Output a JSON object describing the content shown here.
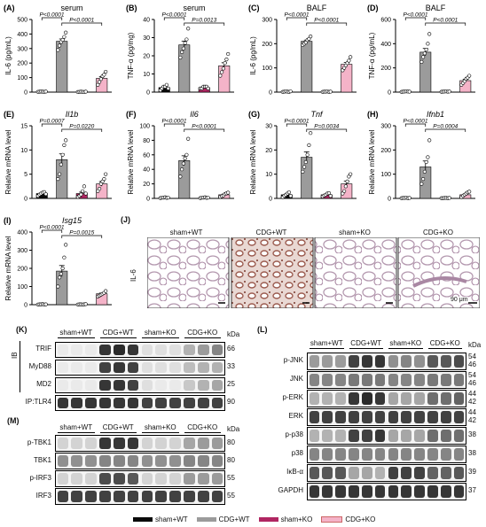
{
  "colors": {
    "sham_WT": "#0a0a0a",
    "CDG_WT": "#9b9b9b",
    "sham_KO": "#b02662",
    "CDG_KO": "#f4b3c8"
  },
  "legend": [
    "sham+WT",
    "CDG+WT",
    "sham+KO",
    "CDG+KO"
  ],
  "chart_data": [
    {
      "type": "bar",
      "panel": "(A)",
      "title": "serum",
      "ylabel": "IL-6 (pg/mL)",
      "ylim": [
        0,
        500
      ],
      "yticks": [
        "0",
        "100",
        "200",
        "300",
        "400",
        "500"
      ],
      "categories": [
        "sham+WT",
        "CDG+WT",
        "sham+KO",
        "CDG+KO"
      ],
      "values": [
        3,
        350,
        2,
        95
      ],
      "points": [
        [
          2,
          3,
          4,
          3,
          2,
          4
        ],
        [
          290,
          320,
          345,
          360,
          380,
          410
        ],
        [
          1,
          2,
          3,
          2,
          1,
          3
        ],
        [
          50,
          70,
          90,
          110,
          120,
          140
        ]
      ],
      "comparisons": [
        {
          "label": "P<0.0001",
          "from": 0,
          "to": 1
        },
        {
          "label": "P<0.0001",
          "from": 1,
          "to": 3
        }
      ]
    },
    {
      "type": "bar",
      "panel": "(B)",
      "title": "serum",
      "ylabel": "TNF-α (pg/mg)",
      "ylim": [
        0,
        40
      ],
      "yticks": [
        "0",
        "10",
        "20",
        "30",
        "40"
      ],
      "categories": [
        "sham+WT",
        "CDG+WT",
        "sham+KO",
        "CDG+KO"
      ],
      "values": [
        2.5,
        26,
        2.5,
        14.5
      ],
      "points": [
        [
          1,
          2,
          3,
          3,
          4,
          2
        ],
        [
          19,
          22,
          24,
          27,
          29,
          35
        ],
        [
          2,
          2,
          3,
          3,
          3,
          2
        ],
        [
          9,
          11,
          13,
          16,
          18,
          21
        ]
      ],
      "comparisons": [
        {
          "label": "P<0.0001",
          "from": 0,
          "to": 1
        },
        {
          "label": "P=0.0013",
          "from": 1,
          "to": 3
        }
      ]
    },
    {
      "type": "bar",
      "panel": "(C)",
      "title": "BALF",
      "ylabel": "IL-6 (pg/mL)",
      "ylim": [
        0,
        300
      ],
      "yticks": [
        "0",
        "100",
        "200",
        "300"
      ],
      "categories": [
        "sham+WT",
        "CDG+WT",
        "sham+KO",
        "CDG+KO"
      ],
      "values": [
        2,
        210,
        2,
        115
      ],
      "points": [
        [
          1,
          2,
          3,
          2,
          1,
          3
        ],
        [
          195,
          200,
          205,
          215,
          220,
          230
        ],
        [
          1,
          2,
          2,
          3,
          1,
          2
        ],
        [
          90,
          100,
          110,
          120,
          130,
          145
        ]
      ],
      "comparisons": [
        {
          "label": "P<0.0001",
          "from": 0,
          "to": 1
        },
        {
          "label": "P<0.0001",
          "from": 1,
          "to": 3
        }
      ]
    },
    {
      "type": "bar",
      "panel": "(D)",
      "title": "BALF",
      "ylabel": "TNF-α (pg/mL)",
      "ylim": [
        0,
        600
      ],
      "yticks": [
        "0",
        "200",
        "400",
        "600"
      ],
      "categories": [
        "sham+WT",
        "CDG+WT",
        "sham+KO",
        "CDG+KO"
      ],
      "values": [
        5,
        330,
        5,
        95
      ],
      "points": [
        [
          2,
          4,
          5,
          6,
          5,
          4
        ],
        [
          250,
          290,
          320,
          350,
          400,
          480
        ],
        [
          3,
          4,
          5,
          6,
          4,
          5
        ],
        [
          60,
          75,
          90,
          110,
          120,
          135
        ]
      ],
      "comparisons": [
        {
          "label": "P<0.0001",
          "from": 0,
          "to": 1
        },
        {
          "label": "P<0.0001",
          "from": 1,
          "to": 3
        }
      ]
    },
    {
      "type": "bar",
      "panel": "(E)",
      "title": "Il1b",
      "ylabel": "Relative mRNA level",
      "ylim": [
        0,
        15
      ],
      "yticks": [
        "0",
        "5",
        "10",
        "15"
      ],
      "categories": [
        "sham+WT",
        "CDG+WT",
        "sham+KO",
        "CDG+KO"
      ],
      "values": [
        1,
        8,
        1,
        3
      ],
      "points": [
        [
          0.5,
          0.8,
          1.0,
          1.2,
          1.3,
          0.9
        ],
        [
          4,
          5,
          7,
          9,
          11,
          12
        ],
        [
          0.3,
          0.5,
          0.8,
          1.5,
          2.5,
          1.0
        ],
        [
          1.5,
          2,
          3,
          3.5,
          4,
          5
        ]
      ],
      "comparisons": [
        {
          "label": "P=0.0007",
          "from": 0,
          "to": 1
        },
        {
          "label": "P=0.0220",
          "from": 1,
          "to": 3
        }
      ]
    },
    {
      "type": "bar",
      "panel": "(F)",
      "title": "Il6",
      "ylabel": "Relative mRNA level",
      "ylim": [
        0,
        100
      ],
      "yticks": [
        "0",
        "20",
        "40",
        "60",
        "80",
        "100"
      ],
      "categories": [
        "sham+WT",
        "CDG+WT",
        "sham+KO",
        "CDG+KO"
      ],
      "values": [
        1,
        52,
        1,
        5
      ],
      "points": [
        [
          0.5,
          1,
          1,
          1.5,
          0.8,
          1
        ],
        [
          30,
          40,
          48,
          55,
          60,
          82
        ],
        [
          0.5,
          1,
          1,
          1.5,
          0.8,
          1
        ],
        [
          2,
          3,
          4,
          6,
          7,
          8
        ]
      ],
      "comparisons": [
        {
          "label": "P<0.0001",
          "from": 0,
          "to": 1
        },
        {
          "label": "P<0.0001",
          "from": 1,
          "to": 3
        }
      ]
    },
    {
      "type": "bar",
      "panel": "(G)",
      "title": "Tnf",
      "ylabel": "Relative mRNA level",
      "ylim": [
        0,
        30
      ],
      "yticks": [
        "0",
        "10",
        "20",
        "30"
      ],
      "categories": [
        "sham+WT",
        "CDG+WT",
        "sham+KO",
        "CDG+KO"
      ],
      "values": [
        1.5,
        17,
        1.5,
        6
      ],
      "points": [
        [
          0.5,
          1,
          1.5,
          2,
          2.5,
          1
        ],
        [
          11,
          13,
          15,
          18,
          22,
          27
        ],
        [
          0.8,
          1.2,
          1.5,
          2,
          2.2,
          1
        ],
        [
          2,
          3,
          5,
          7,
          9,
          10
        ]
      ],
      "comparisons": [
        {
          "label": "P<0.0001",
          "from": 0,
          "to": 1
        },
        {
          "label": "P=0.0034",
          "from": 1,
          "to": 3
        }
      ]
    },
    {
      "type": "bar",
      "panel": "(H)",
      "title": "Ifnb1",
      "ylabel": "Relative mRNA level",
      "ylim": [
        0,
        300
      ],
      "yticks": [
        "0",
        "100",
        "200",
        "300"
      ],
      "categories": [
        "sham+WT",
        "CDG+WT",
        "sham+KO",
        "CDG+KO"
      ],
      "values": [
        2,
        130,
        2,
        15
      ],
      "points": [
        [
          1,
          2,
          2,
          3,
          1,
          2
        ],
        [
          60,
          80,
          110,
          150,
          170,
          240
        ],
        [
          1,
          1,
          2,
          2,
          1,
          2
        ],
        [
          5,
          10,
          15,
          20,
          25,
          28
        ]
      ],
      "comparisons": [
        {
          "label": "P<0.0001",
          "from": 0,
          "to": 1
        },
        {
          "label": "P=0.0004",
          "from": 1,
          "to": 3
        }
      ]
    },
    {
      "type": "bar",
      "panel": "(I)",
      "title": "Isg15",
      "ylabel": "Relative mRNA level",
      "ylim": [
        0,
        400
      ],
      "yticks": [
        "0",
        "100",
        "200",
        "300",
        "400"
      ],
      "categories": [
        "sham+WT",
        "CDG+WT",
        "sham+KO",
        "CDG+KO"
      ],
      "values": [
        2,
        185,
        2,
        60
      ],
      "points": [
        [
          1,
          2,
          2,
          3,
          1,
          2
        ],
        [
          100,
          150,
          170,
          200,
          260,
          330
        ],
        [
          1,
          2,
          2,
          1,
          2,
          3
        ],
        [
          45,
          50,
          55,
          60,
          65,
          75
        ]
      ],
      "comparisons": [
        {
          "label": "P<0.0001",
          "from": 0,
          "to": 1
        },
        {
          "label": "P=0.0015",
          "from": 1,
          "to": 3
        }
      ]
    }
  ],
  "panel_j": {
    "label": "(J)",
    "row_label": "IL-6",
    "groups": [
      "sham+WT",
      "CDG+WT",
      "sham+KO",
      "CDG+KO"
    ],
    "scale_bar": "90 μm"
  },
  "panel_k": {
    "label": "(K)",
    "groups": [
      "sham+WT",
      "CDG+WT",
      "sham+KO",
      "CDG+KO"
    ],
    "kda_label": "kDa",
    "ib_label": "IB",
    "rows": [
      {
        "name": "TRIF",
        "kda": "66",
        "intensity": [
          0.05,
          0.05,
          0.05,
          0.85,
          0.9,
          0.85,
          0.1,
          0.1,
          0.1,
          0.3,
          0.4,
          0.5
        ]
      },
      {
        "name": "MyD88",
        "kda": "33",
        "intensity": [
          0.05,
          0.05,
          0.05,
          0.8,
          0.85,
          0.8,
          0.1,
          0.1,
          0.1,
          0.25,
          0.3,
          0.3
        ]
      },
      {
        "name": "MD2",
        "kda": "25",
        "intensity": [
          0.05,
          0.05,
          0.05,
          0.85,
          0.85,
          0.8,
          0.1,
          0.05,
          0.05,
          0.2,
          0.3,
          0.35
        ]
      },
      {
        "name": "IP:TLR4",
        "kda": "90",
        "intensity": [
          0.85,
          0.85,
          0.85,
          0.85,
          0.85,
          0.85,
          0.8,
          0.8,
          0.8,
          0.8,
          0.8,
          0.8
        ]
      }
    ]
  },
  "panel_l": {
    "label": "(L)",
    "groups": [
      "sham+WT",
      "CDG+WT",
      "sham+KO",
      "CDG+KO"
    ],
    "kda_label": "kDa",
    "rows": [
      {
        "name": "p-JNK",
        "kda": [
          "54",
          "46"
        ],
        "intensity": [
          0.4,
          0.4,
          0.4,
          0.8,
          0.85,
          0.85,
          0.45,
          0.5,
          0.45,
          0.7,
          0.7,
          0.75
        ]
      },
      {
        "name": "JNK",
        "kda": [
          "54",
          "46"
        ],
        "intensity": [
          0.5,
          0.5,
          0.5,
          0.55,
          0.55,
          0.55,
          0.5,
          0.5,
          0.5,
          0.55,
          0.55,
          0.55
        ]
      },
      {
        "name": "p-ERK",
        "kda": [
          "44",
          "42"
        ],
        "intensity": [
          0.3,
          0.3,
          0.3,
          0.85,
          0.9,
          0.85,
          0.35,
          0.35,
          0.35,
          0.6,
          0.6,
          0.65
        ]
      },
      {
        "name": "ERK",
        "kda": [
          "44",
          "42"
        ],
        "intensity": [
          0.8,
          0.8,
          0.8,
          0.8,
          0.8,
          0.8,
          0.8,
          0.8,
          0.8,
          0.8,
          0.8,
          0.8
        ]
      },
      {
        "name": "p-p38",
        "kda": [
          "38"
        ],
        "intensity": [
          0.3,
          0.3,
          0.3,
          0.8,
          0.8,
          0.85,
          0.35,
          0.35,
          0.35,
          0.6,
          0.6,
          0.6
        ]
      },
      {
        "name": "p38",
        "kda": [
          "38"
        ],
        "intensity": [
          0.5,
          0.5,
          0.5,
          0.5,
          0.5,
          0.5,
          0.5,
          0.5,
          0.5,
          0.5,
          0.5,
          0.5
        ]
      },
      {
        "name": "IκB-α",
        "kda": [
          "39"
        ],
        "intensity": [
          0.7,
          0.7,
          0.7,
          0.35,
          0.35,
          0.3,
          0.8,
          0.8,
          0.8,
          0.65,
          0.65,
          0.7
        ]
      },
      {
        "name": "GAPDH",
        "kda": [
          "37"
        ],
        "intensity": [
          0.85,
          0.85,
          0.85,
          0.85,
          0.85,
          0.85,
          0.85,
          0.85,
          0.85,
          0.85,
          0.85,
          0.85
        ]
      }
    ]
  },
  "panel_m": {
    "label": "(M)",
    "groups": [
      "sham+WT",
      "CDG+WT",
      "sham+KO",
      "CDG+KO"
    ],
    "kda_label": "kDa",
    "rows": [
      {
        "name": "p-TBK1",
        "kda": "80",
        "intensity": [
          0.15,
          0.15,
          0.15,
          0.85,
          0.85,
          0.85,
          0.15,
          0.15,
          0.15,
          0.35,
          0.4,
          0.4
        ]
      },
      {
        "name": "TBK1",
        "kda": "80",
        "intensity": [
          0.45,
          0.45,
          0.45,
          0.5,
          0.5,
          0.5,
          0.45,
          0.45,
          0.45,
          0.5,
          0.5,
          0.5
        ]
      },
      {
        "name": "p-IRF3",
        "kda": "55",
        "intensity": [
          0.15,
          0.15,
          0.15,
          0.75,
          0.75,
          0.7,
          0.15,
          0.15,
          0.15,
          0.4,
          0.4,
          0.4
        ]
      },
      {
        "name": "IRF3",
        "kda": "55",
        "intensity": [
          0.8,
          0.8,
          0.8,
          0.8,
          0.8,
          0.8,
          0.8,
          0.8,
          0.8,
          0.8,
          0.8,
          0.8
        ]
      }
    ]
  }
}
